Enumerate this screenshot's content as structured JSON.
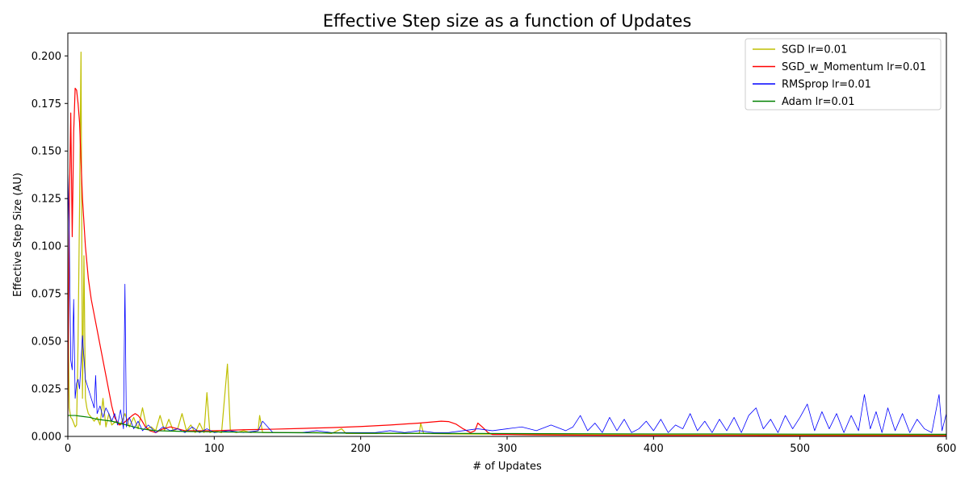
{
  "chart_data": {
    "type": "line",
    "title": "Effective Step size as a function of Updates",
    "xlabel": "# of Updates",
    "ylabel": "Effective Step Size (AU)",
    "xlim": [
      0,
      600
    ],
    "ylim": [
      0,
      0.212
    ],
    "xticks": [
      "0",
      "100",
      "200",
      "300",
      "400",
      "500",
      "600"
    ],
    "yticks": [
      "0.000",
      "0.025",
      "0.050",
      "0.075",
      "0.100",
      "0.125",
      "0.150",
      "0.175",
      "0.200"
    ],
    "grid": false,
    "legend_position": "top-right",
    "series": [
      {
        "name": "SGD lr=0.01",
        "color": "#bfbf00",
        "x": [
          0,
          1,
          2,
          3,
          4,
          5,
          6,
          7,
          8,
          9,
          10,
          11,
          12,
          13,
          14,
          16,
          18,
          20,
          22,
          24,
          26,
          28,
          30,
          33,
          36,
          39,
          42,
          45,
          48,
          51,
          54,
          57,
          60,
          63,
          66,
          69,
          72,
          75,
          78,
          81,
          84,
          87,
          90,
          93,
          95,
          97,
          100,
          105,
          109,
          111,
          115,
          120,
          125,
          130,
          131,
          133,
          140,
          150,
          160,
          170,
          180,
          187,
          190,
          200,
          220,
          240,
          241,
          243,
          260,
          280,
          300,
          350,
          400,
          450,
          500,
          550,
          600
        ],
        "y": [
          0.07,
          0.015,
          0.01,
          0.009,
          0.007,
          0.005,
          0.006,
          0.05,
          0.12,
          0.202,
          0.02,
          0.095,
          0.02,
          0.015,
          0.012,
          0.01,
          0.008,
          0.01,
          0.006,
          0.02,
          0.005,
          0.012,
          0.006,
          0.008,
          0.006,
          0.012,
          0.005,
          0.01,
          0.004,
          0.015,
          0.004,
          0.005,
          0.003,
          0.011,
          0.003,
          0.009,
          0.003,
          0.004,
          0.012,
          0.003,
          0.006,
          0.002,
          0.007,
          0.002,
          0.023,
          0.002,
          0.003,
          0.002,
          0.038,
          0.003,
          0.002,
          0.003,
          0.002,
          0.003,
          0.011,
          0.002,
          0.002,
          0.002,
          0.002,
          0.002,
          0.0015,
          0.004,
          0.0015,
          0.0015,
          0.0015,
          0.0015,
          0.007,
          0.0015,
          0.0013,
          0.0012,
          0.0012,
          0.001,
          0.001,
          0.001,
          0.0009,
          0.0009,
          0.0008
        ]
      },
      {
        "name": "SGD_w_Momentum lr=0.01",
        "color": "#ff0000",
        "x": [
          0,
          1,
          2,
          3,
          4,
          5,
          6,
          7,
          8,
          9,
          10,
          12,
          14,
          16,
          18,
          20,
          22,
          24,
          26,
          28,
          30,
          32,
          35,
          38,
          41,
          44,
          46,
          48,
          50,
          53,
          56,
          60,
          65,
          70,
          80,
          90,
          100,
          120,
          140,
          160,
          180,
          200,
          220,
          240,
          255,
          260,
          265,
          270,
          275,
          278,
          280,
          283,
          287,
          290,
          300,
          320,
          340,
          360,
          400,
          450,
          500,
          550,
          600
        ],
        "y": [
          0.01,
          0.12,
          0.17,
          0.105,
          0.16,
          0.183,
          0.182,
          0.175,
          0.165,
          0.145,
          0.125,
          0.1,
          0.083,
          0.072,
          0.064,
          0.056,
          0.048,
          0.04,
          0.032,
          0.024,
          0.016,
          0.01,
          0.006,
          0.007,
          0.009,
          0.011,
          0.012,
          0.011,
          0.009,
          0.005,
          0.003,
          0.002,
          0.004,
          0.005,
          0.003,
          0.003,
          0.003,
          0.0035,
          0.0038,
          0.0042,
          0.0046,
          0.0052,
          0.006,
          0.007,
          0.008,
          0.0078,
          0.0065,
          0.004,
          0.002,
          0.003,
          0.007,
          0.005,
          0.002,
          0.001,
          0.001,
          0.0008,
          0.0007,
          0.0006,
          0.0005,
          0.0005,
          0.0004,
          0.0004,
          0.0004
        ]
      },
      {
        "name": "RMSprop lr=0.01",
        "color": "#0000ff",
        "x": [
          0,
          1,
          2,
          3,
          4,
          5,
          6,
          7,
          8,
          10,
          12,
          14,
          16,
          18,
          19,
          20,
          22,
          24,
          26,
          28,
          30,
          32,
          34,
          36,
          38,
          39,
          40,
          42,
          45,
          48,
          51,
          55,
          60,
          65,
          70,
          75,
          80,
          85,
          90,
          95,
          100,
          110,
          120,
          130,
          133,
          140,
          150,
          160,
          170,
          180,
          190,
          200,
          210,
          220,
          230,
          240,
          250,
          260,
          270,
          280,
          290,
          300,
          310,
          320,
          330,
          340,
          345,
          350,
          355,
          360,
          365,
          370,
          375,
          380,
          385,
          390,
          395,
          400,
          405,
          410,
          415,
          420,
          425,
          430,
          435,
          440,
          445,
          450,
          455,
          460,
          465,
          470,
          475,
          480,
          485,
          490,
          495,
          500,
          505,
          510,
          515,
          520,
          525,
          530,
          535,
          540,
          544,
          548,
          552,
          556,
          560,
          565,
          570,
          575,
          580,
          585,
          590,
          595,
          597,
          600
        ],
        "y": [
          0.14,
          0.105,
          0.04,
          0.035,
          0.072,
          0.02,
          0.028,
          0.03,
          0.025,
          0.053,
          0.03,
          0.025,
          0.02,
          0.015,
          0.032,
          0.012,
          0.016,
          0.01,
          0.015,
          0.012,
          0.008,
          0.012,
          0.006,
          0.014,
          0.004,
          0.08,
          0.005,
          0.01,
          0.004,
          0.008,
          0.003,
          0.006,
          0.002,
          0.005,
          0.003,
          0.004,
          0.002,
          0.005,
          0.002,
          0.004,
          0.002,
          0.003,
          0.002,
          0.003,
          0.008,
          0.002,
          0.002,
          0.002,
          0.003,
          0.002,
          0.002,
          0.002,
          0.002,
          0.003,
          0.002,
          0.003,
          0.002,
          0.002,
          0.003,
          0.004,
          0.003,
          0.004,
          0.005,
          0.003,
          0.006,
          0.003,
          0.005,
          0.011,
          0.003,
          0.007,
          0.002,
          0.01,
          0.003,
          0.009,
          0.002,
          0.004,
          0.008,
          0.003,
          0.009,
          0.002,
          0.006,
          0.004,
          0.012,
          0.003,
          0.008,
          0.002,
          0.009,
          0.003,
          0.01,
          0.002,
          0.011,
          0.015,
          0.004,
          0.009,
          0.002,
          0.011,
          0.004,
          0.01,
          0.017,
          0.003,
          0.013,
          0.004,
          0.012,
          0.002,
          0.011,
          0.003,
          0.022,
          0.004,
          0.013,
          0.002,
          0.015,
          0.003,
          0.012,
          0.002,
          0.009,
          0.004,
          0.002,
          0.022,
          0.003,
          0.012
        ]
      },
      {
        "name": "Adam lr=0.01",
        "color": "#008000",
        "x": [
          0,
          5,
          10,
          15,
          20,
          25,
          30,
          35,
          40,
          45,
          50,
          55,
          60,
          70,
          80,
          90,
          100,
          120,
          140,
          160,
          180,
          200,
          250,
          300,
          350,
          400,
          450,
          500,
          550,
          600
        ],
        "y": [
          0.011,
          0.011,
          0.0105,
          0.01,
          0.009,
          0.0085,
          0.008,
          0.007,
          0.006,
          0.005,
          0.004,
          0.0035,
          0.003,
          0.0028,
          0.0026,
          0.0025,
          0.0024,
          0.0022,
          0.002,
          0.0019,
          0.0018,
          0.0017,
          0.0016,
          0.0015,
          0.0014,
          0.0013,
          0.0013,
          0.0012,
          0.0012,
          0.0011
        ]
      }
    ]
  }
}
